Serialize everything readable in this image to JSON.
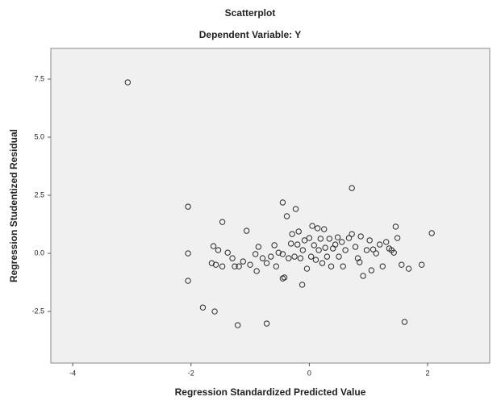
{
  "chart_data": {
    "type": "scatter",
    "title": "Scatterplot",
    "subtitle": "Dependent Variable: Y",
    "x_label": "Regression Standardized Predicted Value",
    "y_label": "Regression Studentized Residual",
    "color": "#2a2a2a",
    "xlim": [
      -4.37,
      3.05
    ],
    "ylim": [
      -4.72,
      8.82
    ],
    "xticks": [
      -4,
      -2,
      0,
      2
    ],
    "yticks": [
      {
        "value": 7.5,
        "label": "7.5"
      },
      {
        "value": 5,
        "label": "5.0"
      },
      {
        "value": 2.5,
        "label": "2.5"
      },
      {
        "value": 0,
        "label": "0.0"
      },
      {
        "value": -2.5,
        "label": "-2.5"
      }
    ],
    "x": [
      -3.07,
      -2.05,
      -2.05,
      -2.05,
      -1.8,
      -1.6,
      -1.21,
      -0.72,
      1.61,
      0.72,
      -0.45,
      -0.23,
      -1.47,
      2.07,
      -1.62,
      -1.54,
      -1.65,
      -1.58,
      -1.47,
      -1.38,
      -1.3,
      -1.19,
      -1.12,
      -1.06,
      -1.0,
      -0.91,
      -0.86,
      -0.79,
      -0.72,
      -0.65,
      -0.59,
      -0.52,
      -0.45,
      -0.42,
      -0.38,
      -0.35,
      -0.31,
      -0.29,
      -0.25,
      -0.2,
      -0.18,
      -0.15,
      -0.12,
      -0.11,
      -0.08,
      -0.04,
      0.0,
      0.03,
      0.05,
      0.08,
      0.11,
      0.14,
      0.16,
      0.19,
      0.22,
      0.25,
      0.27,
      0.3,
      0.34,
      0.37,
      0.4,
      0.44,
      0.48,
      0.5,
      0.55,
      0.57,
      0.61,
      0.67,
      0.72,
      0.78,
      0.82,
      0.87,
      0.91,
      0.97,
      1.02,
      1.08,
      1.13,
      1.19,
      1.24,
      1.3,
      1.35,
      1.39,
      1.43,
      1.46,
      1.49,
      1.56,
      1.68,
      1.9,
      1.05,
      0.85,
      -0.45,
      -0.56,
      -0.89,
      -1.26
    ],
    "values": [
      7.36,
      2.01,
      0.0,
      -1.18,
      -2.33,
      -2.5,
      -3.09,
      -3.02,
      -2.95,
      2.81,
      2.19,
      1.91,
      1.35,
      0.87,
      0.31,
      0.14,
      -0.42,
      -0.49,
      -0.56,
      0.03,
      -0.21,
      -0.56,
      -0.35,
      0.97,
      -0.49,
      -0.03,
      0.28,
      -0.21,
      -0.42,
      -0.14,
      0.35,
      0.03,
      -1.08,
      -1.04,
      1.6,
      -0.21,
      0.42,
      0.83,
      -0.14,
      0.38,
      0.94,
      -0.21,
      -1.35,
      0.14,
      0.56,
      -0.66,
      0.66,
      -0.14,
      1.18,
      0.35,
      -0.28,
      1.08,
      0.14,
      0.63,
      -0.42,
      1.04,
      0.24,
      -0.14,
      0.63,
      -0.56,
      0.21,
      0.38,
      0.69,
      -0.14,
      0.49,
      -0.56,
      0.14,
      0.66,
      0.83,
      0.28,
      -0.21,
      0.73,
      -0.97,
      0.14,
      0.56,
      0.17,
      0.0,
      0.38,
      -0.56,
      0.49,
      0.21,
      0.14,
      0.03,
      1.15,
      0.66,
      -0.49,
      -0.66,
      -0.49,
      -0.73,
      -0.38,
      -0.03,
      -0.56,
      -0.76,
      -0.56
    ]
  }
}
